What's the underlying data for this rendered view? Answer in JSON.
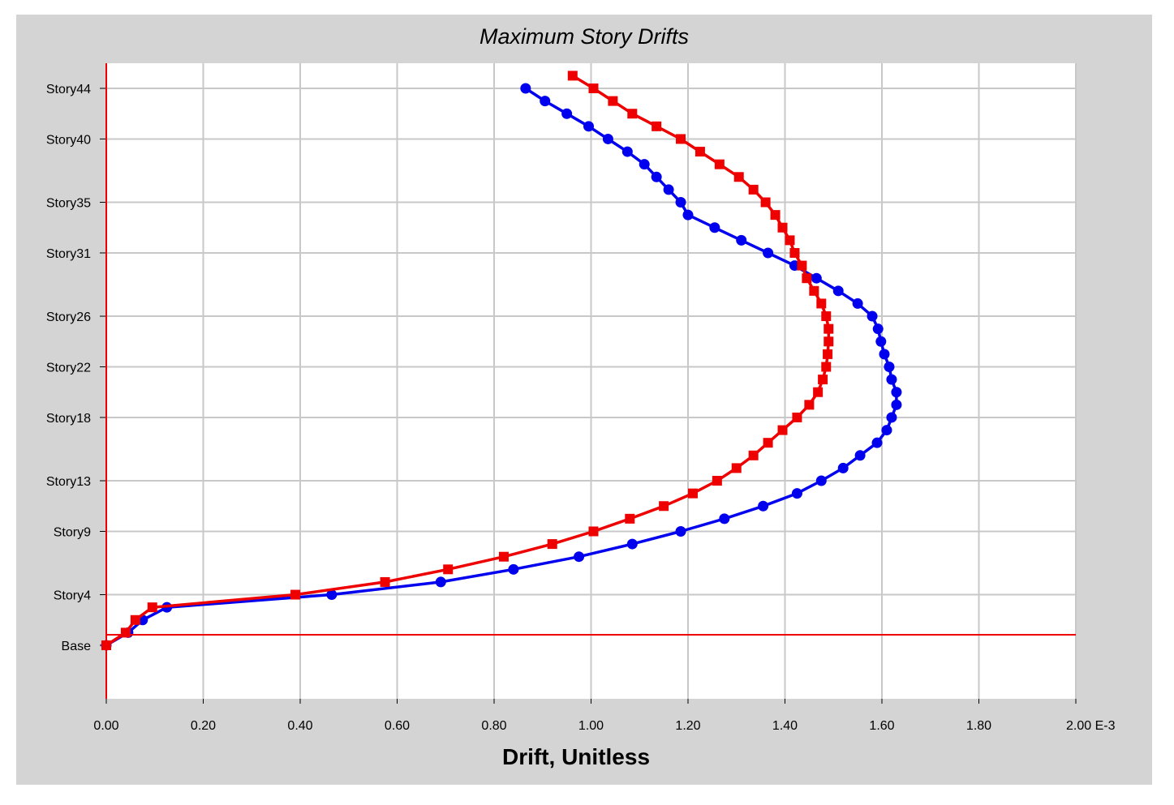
{
  "chart_data": {
    "type": "line",
    "title": "Maximum Story Drifts",
    "xlabel": "Drift, Unitless",
    "ylabel": "",
    "xlim": [
      0,
      2.0
    ],
    "x_tick_labels": [
      "0.00",
      "0.20",
      "0.40",
      "0.60",
      "0.80",
      "1.00",
      "1.20",
      "1.40",
      "1.60",
      "1.80",
      "2.00 E-3"
    ],
    "x_ticks": [
      0,
      0.2,
      0.4,
      0.6,
      0.8,
      1.0,
      1.2,
      1.4,
      1.6,
      1.8,
      2.0
    ],
    "y_ticks": [
      {
        "label": "Story44",
        "story": 44
      },
      {
        "label": "Story40",
        "story": 40
      },
      {
        "label": "Story35",
        "story": 35
      },
      {
        "label": "Story31",
        "story": 31
      },
      {
        "label": "Story26",
        "story": 26
      },
      {
        "label": "Story22",
        "story": 22
      },
      {
        "label": "Story18",
        "story": 18
      },
      {
        "label": "Story13",
        "story": 13
      },
      {
        "label": "Story9",
        "story": 9
      },
      {
        "label": "Story4",
        "story": 4
      },
      {
        "label": "Base",
        "story": 0
      }
    ],
    "grid": true,
    "series": [
      {
        "color": "#0000ee",
        "marker": "circle",
        "points": [
          [
            0.0,
            0
          ],
          [
            0.045,
            1
          ],
          [
            0.075,
            2
          ],
          [
            0.125,
            3
          ],
          [
            0.465,
            4
          ],
          [
            0.69,
            5
          ],
          [
            0.84,
            6
          ],
          [
            0.975,
            7
          ],
          [
            1.085,
            8
          ],
          [
            1.185,
            9
          ],
          [
            1.275,
            10
          ],
          [
            1.355,
            11
          ],
          [
            1.425,
            12
          ],
          [
            1.475,
            13
          ],
          [
            1.52,
            14
          ],
          [
            1.555,
            15
          ],
          [
            1.59,
            16
          ],
          [
            1.61,
            17
          ],
          [
            1.62,
            18
          ],
          [
            1.63,
            19
          ],
          [
            1.63,
            20
          ],
          [
            1.62,
            21
          ],
          [
            1.615,
            22
          ],
          [
            1.605,
            23
          ],
          [
            1.598,
            24
          ],
          [
            1.592,
            25
          ],
          [
            1.58,
            26
          ],
          [
            1.55,
            27
          ],
          [
            1.51,
            28
          ],
          [
            1.465,
            29
          ],
          [
            1.42,
            30
          ],
          [
            1.365,
            31
          ],
          [
            1.31,
            32
          ],
          [
            1.255,
            33
          ],
          [
            1.2,
            34
          ],
          [
            1.185,
            35
          ],
          [
            1.16,
            36
          ],
          [
            1.135,
            37
          ],
          [
            1.11,
            38
          ],
          [
            1.075,
            39
          ],
          [
            1.035,
            40
          ],
          [
            0.995,
            41
          ],
          [
            0.95,
            42
          ],
          [
            0.905,
            43
          ],
          [
            0.865,
            44
          ]
        ]
      },
      {
        "color": "#ee0000",
        "marker": "square",
        "points": [
          [
            0.0,
            0
          ],
          [
            0.04,
            1
          ],
          [
            0.06,
            2
          ],
          [
            0.095,
            3
          ],
          [
            0.39,
            4
          ],
          [
            0.575,
            5
          ],
          [
            0.705,
            6
          ],
          [
            0.82,
            7
          ],
          [
            0.92,
            8
          ],
          [
            1.005,
            9
          ],
          [
            1.08,
            10
          ],
          [
            1.15,
            11
          ],
          [
            1.21,
            12
          ],
          [
            1.26,
            13
          ],
          [
            1.3,
            14
          ],
          [
            1.335,
            15
          ],
          [
            1.365,
            16
          ],
          [
            1.395,
            17
          ],
          [
            1.425,
            18
          ],
          [
            1.45,
            19
          ],
          [
            1.468,
            20
          ],
          [
            1.478,
            21
          ],
          [
            1.485,
            22
          ],
          [
            1.488,
            23
          ],
          [
            1.49,
            24
          ],
          [
            1.49,
            25
          ],
          [
            1.485,
            26
          ],
          [
            1.475,
            27
          ],
          [
            1.46,
            28
          ],
          [
            1.445,
            29
          ],
          [
            1.435,
            30
          ],
          [
            1.42,
            31
          ],
          [
            1.41,
            32
          ],
          [
            1.395,
            33
          ],
          [
            1.38,
            34
          ],
          [
            1.36,
            35
          ],
          [
            1.335,
            36
          ],
          [
            1.305,
            37
          ],
          [
            1.265,
            38
          ],
          [
            1.225,
            39
          ],
          [
            1.185,
            40
          ],
          [
            1.135,
            41
          ],
          [
            1.085,
            42
          ],
          [
            1.045,
            43
          ],
          [
            1.005,
            44
          ],
          [
            0.962,
            45
          ]
        ]
      }
    ]
  }
}
